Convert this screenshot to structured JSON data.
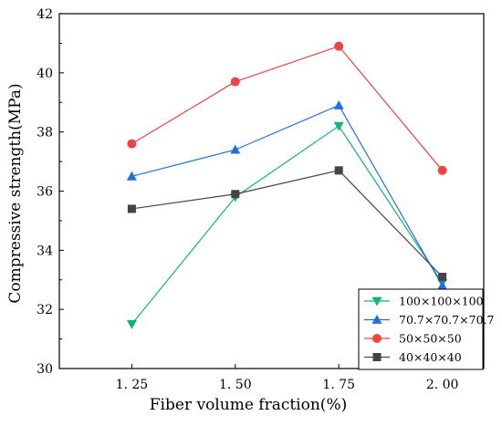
{
  "chart_data": {
    "type": "line",
    "title": "",
    "xlabel": "Fiber volume fraction(%)",
    "ylabel": "Compressive strength(MPa)",
    "x": [
      1.25,
      1.5,
      1.75,
      2.0
    ],
    "x_tick_labels": [
      "1. 25",
      "1. 50",
      "1. 75",
      "2. 00"
    ],
    "y_tick_labels": [
      "30",
      "32",
      "34",
      "36",
      "38",
      "40",
      "42"
    ],
    "ylim": [
      30,
      42
    ],
    "xlim": [
      1.075,
      2.1
    ],
    "grid": false,
    "legend_position": "bottom-right",
    "series": [
      {
        "name": "100×100×100",
        "values": [
          31.5,
          35.8,
          38.2,
          32.9
        ],
        "color": "#12b37d",
        "marker": "triangle-down"
      },
      {
        "name": "70.7×70.7×70.7",
        "values": [
          36.5,
          37.4,
          38.9,
          32.8
        ],
        "color": "#1f6fe0",
        "marker": "triangle-up"
      },
      {
        "name": "50×50×50",
        "values": [
          37.6,
          39.7,
          40.9,
          36.7
        ],
        "color": "#ee4444",
        "marker": "circle"
      },
      {
        "name": "40×40×40",
        "values": [
          35.4,
          35.9,
          36.7,
          33.1
        ],
        "color": "#444444",
        "marker": "square"
      }
    ]
  }
}
